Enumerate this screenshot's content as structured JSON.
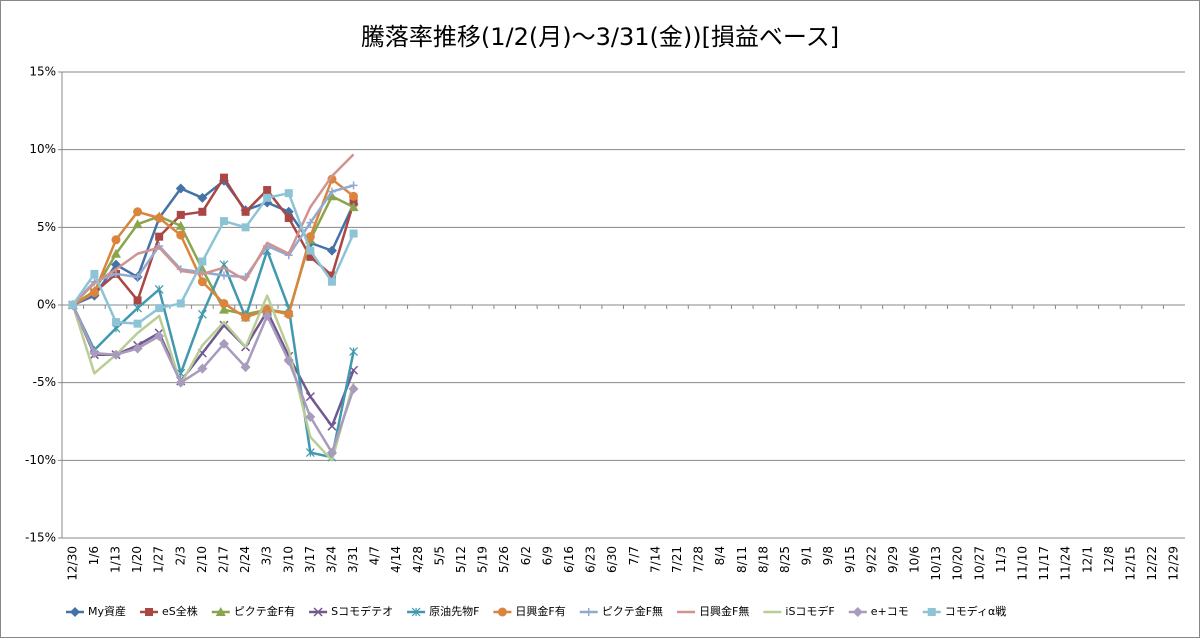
{
  "chart_data": {
    "type": "line",
    "title": "騰落率推移(1/2(月)～3/31(金))[損益ベース]",
    "categories": [
      "12/30",
      "1/6",
      "1/13",
      "1/20",
      "1/27",
      "2/3",
      "2/10",
      "2/17",
      "2/24",
      "3/3",
      "3/10",
      "3/17",
      "3/24",
      "3/31",
      "4/7",
      "4/14",
      "4/28",
      "5/5",
      "5/12",
      "5/19",
      "5/26",
      "6/2",
      "6/9",
      "6/16",
      "6/23",
      "6/30",
      "7/7",
      "7/14",
      "7/21",
      "7/28",
      "8/4",
      "8/11",
      "8/18",
      "8/25",
      "9/1",
      "9/8",
      "9/15",
      "9/22",
      "9/29",
      "10/6",
      "10/13",
      "10/20",
      "10/27",
      "11/3",
      "11/10",
      "11/17",
      "11/24",
      "12/1",
      "12/8",
      "12/15",
      "12/22",
      "12/29"
    ],
    "ylim": [
      -15,
      15
    ],
    "yticks": [
      {
        "value": -15,
        "label": "-15%"
      },
      {
        "value": -10,
        "label": "-10%"
      },
      {
        "value": -5,
        "label": "-5%"
      },
      {
        "value": 0,
        "label": "0%"
      },
      {
        "value": 5,
        "label": "5%"
      },
      {
        "value": 10,
        "label": "10%"
      },
      {
        "value": 15,
        "label": "15%"
      }
    ],
    "grid": true,
    "legend": "bottom",
    "series": [
      {
        "name": "My資産",
        "color": "#4572A7",
        "marker": "diamond",
        "values": [
          0,
          0.6,
          2.6,
          1.8,
          5.6,
          7.5,
          6.9,
          8.0,
          6.1,
          6.6,
          6.0,
          4.0,
          3.5,
          6.5,
          null,
          null,
          null,
          null,
          null,
          null,
          null,
          null,
          null,
          null,
          null,
          null,
          null,
          null,
          null,
          null,
          null,
          null,
          null,
          null,
          null,
          null,
          null,
          null,
          null,
          null,
          null,
          null,
          null,
          null,
          null,
          null,
          null,
          null,
          null,
          null,
          null,
          null
        ]
      },
      {
        "name": "eS全株",
        "color": "#AA4643",
        "marker": "square",
        "values": [
          0,
          0.8,
          2.0,
          0.3,
          4.4,
          5.8,
          6.0,
          8.2,
          6.0,
          7.4,
          5.6,
          3.1,
          1.9,
          6.6,
          null,
          null,
          null,
          null,
          null,
          null,
          null,
          null,
          null,
          null,
          null,
          null,
          null,
          null,
          null,
          null,
          null,
          null,
          null,
          null,
          null,
          null,
          null,
          null,
          null,
          null,
          null,
          null,
          null,
          null,
          null,
          null,
          null,
          null,
          null,
          null,
          null,
          null
        ]
      },
      {
        "name": "ピクテ金F有",
        "color": "#89A54E",
        "marker": "triangle",
        "values": [
          0,
          0.9,
          3.3,
          5.2,
          5.7,
          5.1,
          2.3,
          -0.3,
          -0.6,
          -0.3,
          -0.5,
          4.2,
          7.0,
          6.3,
          null,
          null,
          null,
          null,
          null,
          null,
          null,
          null,
          null,
          null,
          null,
          null,
          null,
          null,
          null,
          null,
          null,
          null,
          null,
          null,
          null,
          null,
          null,
          null,
          null,
          null,
          null,
          null,
          null,
          null,
          null,
          null,
          null,
          null,
          null,
          null,
          null,
          null
        ]
      },
      {
        "name": "Sコモデテオ",
        "color": "#71588F",
        "marker": "x",
        "values": [
          0,
          -3.2,
          -3.2,
          -2.6,
          -1.8,
          -4.9,
          -3.1,
          -1.3,
          -2.7,
          -0.4,
          -3.3,
          -5.9,
          -7.8,
          -4.2,
          null,
          null,
          null,
          null,
          null,
          null,
          null,
          null,
          null,
          null,
          null,
          null,
          null,
          null,
          null,
          null,
          null,
          null,
          null,
          null,
          null,
          null,
          null,
          null,
          null,
          null,
          null,
          null,
          null,
          null,
          null,
          null,
          null,
          null,
          null,
          null,
          null,
          null
        ]
      },
      {
        "name": "原油先物F",
        "color": "#4198AF",
        "marker": "star",
        "values": [
          0,
          -2.9,
          -1.5,
          -0.2,
          1.0,
          -4.4,
          -0.6,
          2.6,
          -0.8,
          3.5,
          -0.2,
          -9.5,
          -9.8,
          -3.0,
          null,
          null,
          null,
          null,
          null,
          null,
          null,
          null,
          null,
          null,
          null,
          null,
          null,
          null,
          null,
          null,
          null,
          null,
          null,
          null,
          null,
          null,
          null,
          null,
          null,
          null,
          null,
          null,
          null,
          null,
          null,
          null,
          null,
          null,
          null,
          null,
          null,
          null
        ]
      },
      {
        "name": "日興金F有",
        "color": "#DB843D",
        "marker": "circle",
        "values": [
          0,
          0.8,
          4.2,
          6.0,
          5.6,
          4.5,
          1.5,
          0.1,
          -0.8,
          -0.3,
          -0.6,
          4.4,
          8.1,
          7.0,
          null,
          null,
          null,
          null,
          null,
          null,
          null,
          null,
          null,
          null,
          null,
          null,
          null,
          null,
          null,
          null,
          null,
          null,
          null,
          null,
          null,
          null,
          null,
          null,
          null,
          null,
          null,
          null,
          null,
          null,
          null,
          null,
          null,
          null,
          null,
          null,
          null,
          null
        ]
      },
      {
        "name": "ピクテ金F無",
        "color": "#93A9CF",
        "marker": "plus",
        "values": [
          0,
          1.5,
          2.0,
          1.8,
          3.8,
          2.3,
          2.1,
          1.9,
          1.8,
          3.8,
          3.2,
          5.3,
          7.3,
          7.7,
          null,
          null,
          null,
          null,
          null,
          null,
          null,
          null,
          null,
          null,
          null,
          null,
          null,
          null,
          null,
          null,
          null,
          null,
          null,
          null,
          null,
          null,
          null,
          null,
          null,
          null,
          null,
          null,
          null,
          null,
          null,
          null,
          null,
          null,
          null,
          null,
          null,
          null
        ]
      },
      {
        "name": "日興金F無",
        "color": "#D19392",
        "marker": "none",
        "values": [
          0,
          1.4,
          2.3,
          3.3,
          3.7,
          2.2,
          2.0,
          2.4,
          1.6,
          4.0,
          3.3,
          6.3,
          8.3,
          9.7,
          null,
          null,
          null,
          null,
          null,
          null,
          null,
          null,
          null,
          null,
          null,
          null,
          null,
          null,
          null,
          null,
          null,
          null,
          null,
          null,
          null,
          null,
          null,
          null,
          null,
          null,
          null,
          null,
          null,
          null,
          null,
          null,
          null,
          null,
          null,
          null,
          null,
          null
        ]
      },
      {
        "name": "iSコモデF",
        "color": "#B9CD96",
        "marker": "none",
        "values": [
          0,
          -4.4,
          -3.2,
          -1.8,
          -0.7,
          -5.1,
          -2.6,
          -1.1,
          -2.7,
          0.6,
          -2.9,
          -8.5,
          -10.0,
          -5.0,
          null,
          null,
          null,
          null,
          null,
          null,
          null,
          null,
          null,
          null,
          null,
          null,
          null,
          null,
          null,
          null,
          null,
          null,
          null,
          null,
          null,
          null,
          null,
          null,
          null,
          null,
          null,
          null,
          null,
          null,
          null,
          null,
          null,
          null,
          null,
          null,
          null,
          null
        ]
      },
      {
        "name": "e+コモ",
        "color": "#A99BBD",
        "marker": "diamond",
        "values": [
          0,
          -3.1,
          -3.2,
          -2.8,
          -2.0,
          -5.0,
          -4.1,
          -2.5,
          -4.0,
          -0.7,
          -3.6,
          -7.2,
          -9.5,
          -5.4,
          null,
          null,
          null,
          null,
          null,
          null,
          null,
          null,
          null,
          null,
          null,
          null,
          null,
          null,
          null,
          null,
          null,
          null,
          null,
          null,
          null,
          null,
          null,
          null,
          null,
          null,
          null,
          null,
          null,
          null,
          null,
          null,
          null,
          null,
          null,
          null,
          null,
          null
        ]
      },
      {
        "name": "コモディα戦",
        "color": "#8CC4D6",
        "marker": "square",
        "values": [
          0,
          2.0,
          -1.1,
          -1.2,
          -0.2,
          0.1,
          2.8,
          5.4,
          5.0,
          6.9,
          7.2,
          3.5,
          1.5,
          4.6,
          null,
          null,
          null,
          null,
          null,
          null,
          null,
          null,
          null,
          null,
          null,
          null,
          null,
          null,
          null,
          null,
          null,
          null,
          null,
          null,
          null,
          null,
          null,
          null,
          null,
          null,
          null,
          null,
          null,
          null,
          null,
          null,
          null,
          null,
          null,
          null,
          null,
          null
        ]
      }
    ]
  }
}
